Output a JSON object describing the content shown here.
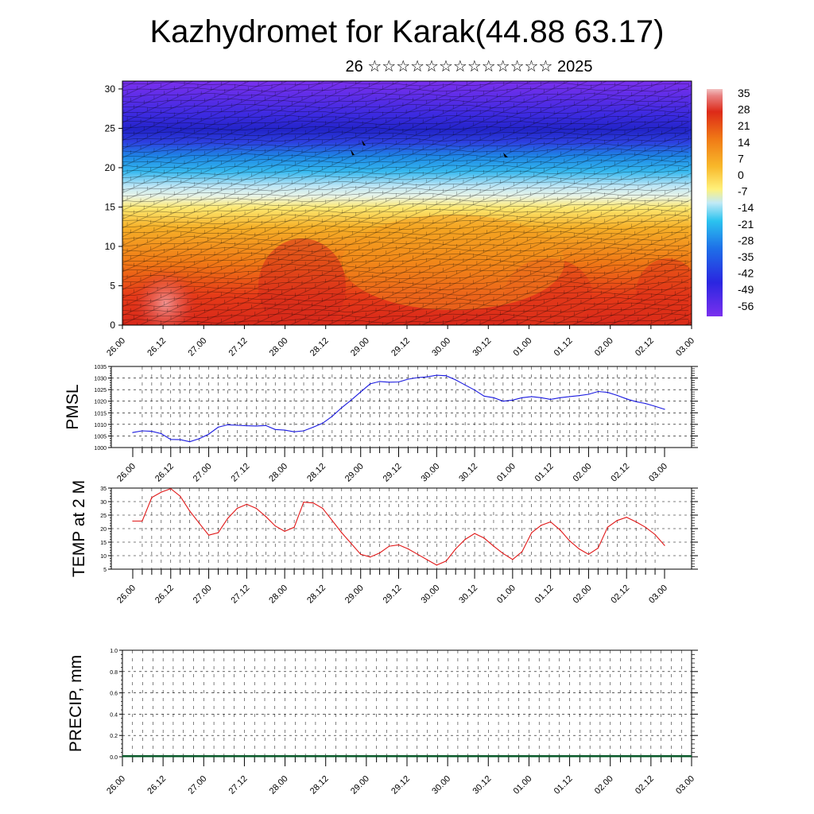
{
  "title": "Kazhydromet for Karak(44.88 63.17)",
  "subtitle": "26 ☆☆☆☆☆☆☆☆☆☆☆☆☆ 2025",
  "chart_data": [
    {
      "type": "heatmap",
      "name": "temperature-height cross-section with wind barbs",
      "xlabel": "",
      "ylabel": "",
      "x_tick_labels": [
        "26.00",
        "26.12",
        "27.00",
        "27.12",
        "28.00",
        "28.12",
        "29.00",
        "29.12",
        "30.00",
        "30.12",
        "01.00",
        "01.12",
        "02.00",
        "02.12",
        "03.00"
      ],
      "y_tick_labels": [
        "0",
        "5",
        "10",
        "15",
        "20",
        "25",
        "30"
      ],
      "ylim": [
        0,
        31
      ],
      "colorbar_labels": [
        "35",
        "28",
        "21",
        "14",
        "7",
        "0",
        "-7",
        "-14",
        "-21",
        "-28",
        "-35",
        "-42",
        "-49",
        "-56"
      ],
      "colors": {
        "hot": "#d82418",
        "warm": "#f08a18",
        "neutral": "#fff17a",
        "cool": "#19b2ec",
        "cold": "#2330d8",
        "coldest": "#6b28ea"
      }
    },
    {
      "type": "line",
      "ylabel": "PMSL",
      "ylim": [
        1000,
        1035
      ],
      "y_tick_labels": [
        "1000",
        "1005",
        "1010",
        "1015",
        "1020",
        "1025",
        "1030",
        "1035"
      ],
      "categories": [
        "26.00",
        "26.12",
        "27.00",
        "27.12",
        "28.00",
        "28.12",
        "29.00",
        "29.12",
        "30.00",
        "30.12",
        "01.00",
        "01.12",
        "02.00",
        "02.12",
        "03.00"
      ],
      "x": [
        0,
        3,
        6,
        9,
        12,
        15,
        18,
        21,
        24,
        27,
        30,
        33,
        36,
        39,
        42,
        45,
        48,
        51,
        54,
        57,
        60,
        63,
        66,
        69,
        72,
        75,
        78,
        81,
        84,
        87,
        90,
        93,
        96,
        99,
        102,
        105,
        108,
        111,
        114,
        117,
        120,
        123,
        126,
        129,
        132,
        135,
        138,
        141,
        144,
        147,
        150,
        153,
        156,
        159,
        162,
        165,
        168
      ],
      "values": [
        1006.5,
        1007.2,
        1007.0,
        1006.0,
        1003.5,
        1003.4,
        1002.5,
        1003.8,
        1005.8,
        1008.8,
        1009.8,
        1009.6,
        1009.4,
        1009.3,
        1009.5,
        1007.8,
        1007.5,
        1006.8,
        1007.2,
        1008.8,
        1010.5,
        1013.5,
        1017.2,
        1020.5,
        1024.0,
        1027.5,
        1028.5,
        1028.2,
        1028.3,
        1029.5,
        1030.2,
        1030.5,
        1031.2,
        1031.0,
        1029.2,
        1027.0,
        1024.8,
        1022.2,
        1021.5,
        1020.0,
        1020.5,
        1021.5,
        1022.0,
        1021.5,
        1020.8,
        1021.5,
        1022.0,
        1022.4,
        1023.0,
        1024.2,
        1023.8,
        1022.5,
        1021.0,
        1019.8,
        1019.0,
        1017.8,
        1016.5
      ],
      "color": "#1a1ae0"
    },
    {
      "type": "line",
      "ylabel": "TEMP at 2 M",
      "ylim": [
        5,
        35
      ],
      "y_tick_labels": [
        "5",
        "10",
        "15",
        "20",
        "25",
        "30",
        "35"
      ],
      "categories": [
        "26.00",
        "26.12",
        "27.00",
        "27.12",
        "28.00",
        "28.12",
        "29.00",
        "29.12",
        "30.00",
        "30.12",
        "01.00",
        "01.12",
        "02.00",
        "02.12",
        "03.00"
      ],
      "x": [
        0,
        3,
        6,
        9,
        12,
        15,
        18,
        21,
        24,
        27,
        30,
        33,
        36,
        39,
        42,
        45,
        48,
        51,
        54,
        57,
        60,
        63,
        66,
        69,
        72,
        75,
        78,
        81,
        84,
        87,
        90,
        93,
        96,
        99,
        102,
        105,
        108,
        111,
        114,
        117,
        120,
        123,
        126,
        129,
        132,
        135,
        138,
        141,
        144,
        147,
        150,
        153,
        156,
        159,
        162,
        165,
        168
      ],
      "values": [
        22.8,
        22.8,
        31.5,
        33.5,
        34.8,
        32.0,
        26.5,
        22.0,
        17.6,
        18.5,
        23.8,
        27.5,
        29.0,
        27.5,
        24.5,
        21.0,
        19.0,
        20.5,
        29.8,
        29.5,
        27.5,
        23.0,
        18.5,
        14.5,
        10.5,
        9.5,
        11.0,
        13.5,
        14.0,
        12.5,
        10.5,
        8.5,
        6.5,
        8.0,
        12.5,
        16.0,
        18.2,
        16.5,
        13.5,
        10.8,
        8.6,
        11.5,
        18.5,
        21.2,
        22.5,
        19.5,
        15.5,
        12.5,
        10.5,
        12.8,
        20.5,
        23.0,
        24.2,
        22.5,
        20.5,
        17.8,
        13.8
      ],
      "color": "#e01818"
    },
    {
      "type": "line",
      "ylabel": "PRECIP, mm",
      "ylim": [
        0,
        1
      ],
      "y_tick_labels": [
        "0.0",
        "0.2",
        "0.4",
        "0.6",
        "0.8",
        "1.0"
      ],
      "categories": [
        "26.00",
        "26.12",
        "27.00",
        "27.12",
        "28.00",
        "28.12",
        "29.00",
        "29.12",
        "30.00",
        "30.12",
        "01.00",
        "01.12",
        "02.00",
        "02.12",
        "03.00"
      ],
      "x": [
        0,
        168
      ],
      "values": [
        0,
        0
      ],
      "color": "#0a5a2a"
    }
  ]
}
